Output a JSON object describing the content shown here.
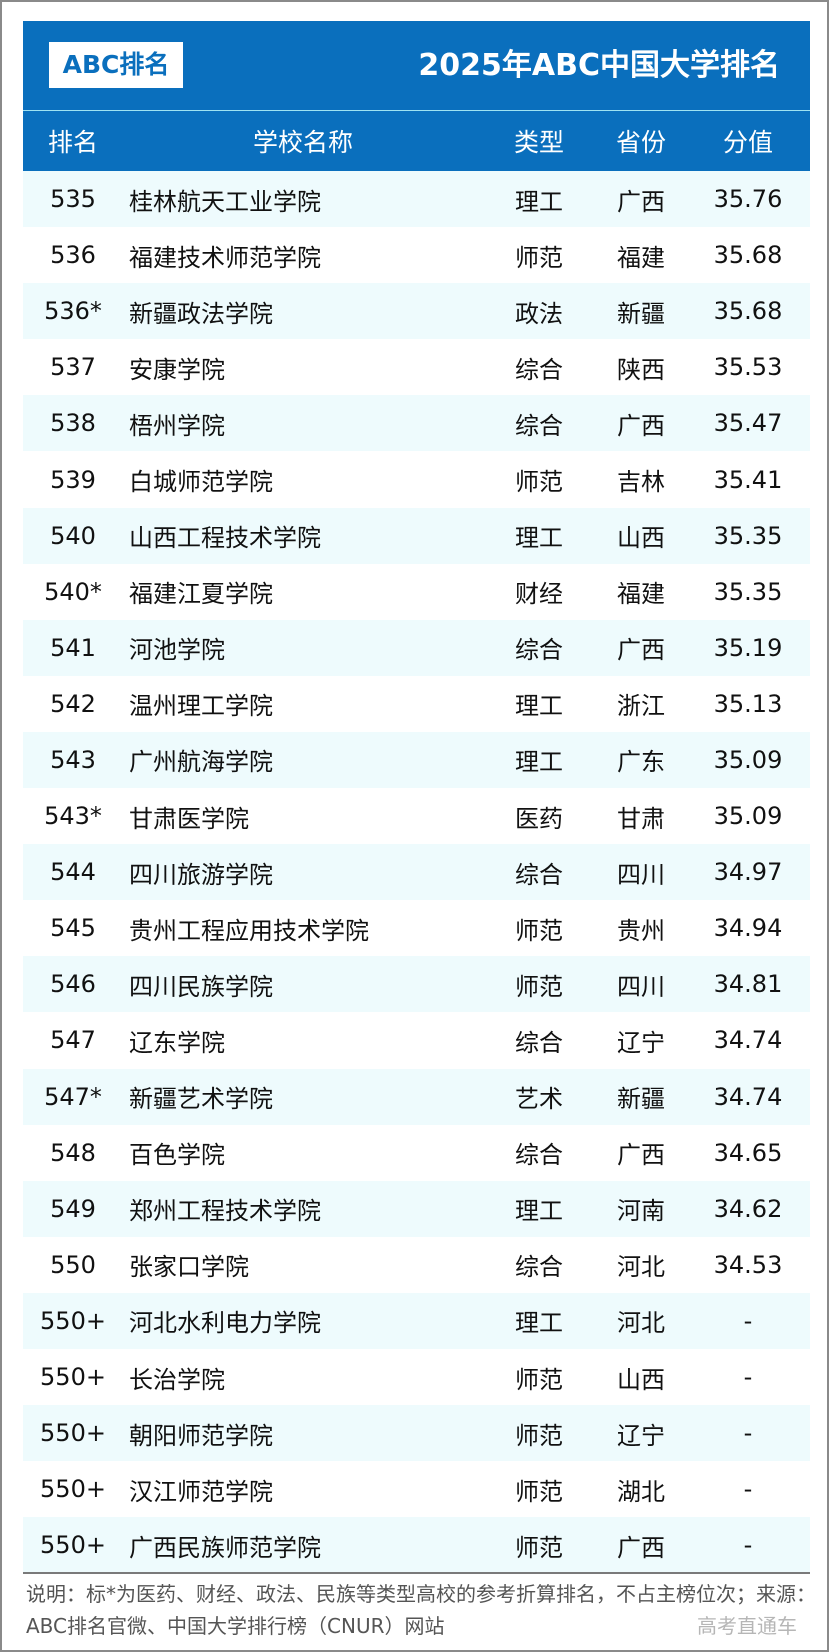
{
  "header": {
    "logo": "ABC排名",
    "title": "2025年ABC中国大学排名"
  },
  "columns": [
    "排名",
    "学校名称",
    "类型",
    "省份",
    "分值"
  ],
  "rows": [
    [
      "535",
      "桂林航天工业学院",
      "理工",
      "广西",
      "35.76"
    ],
    [
      "536",
      "福建技术师范学院",
      "师范",
      "福建",
      "35.68"
    ],
    [
      "536*",
      "新疆政法学院",
      "政法",
      "新疆",
      "35.68"
    ],
    [
      "537",
      "安康学院",
      "综合",
      "陕西",
      "35.53"
    ],
    [
      "538",
      "梧州学院",
      "综合",
      "广西",
      "35.47"
    ],
    [
      "539",
      "白城师范学院",
      "师范",
      "吉林",
      "35.41"
    ],
    [
      "540",
      "山西工程技术学院",
      "理工",
      "山西",
      "35.35"
    ],
    [
      "540*",
      "福建江夏学院",
      "财经",
      "福建",
      "35.35"
    ],
    [
      "541",
      "河池学院",
      "综合",
      "广西",
      "35.19"
    ],
    [
      "542",
      "温州理工学院",
      "理工",
      "浙江",
      "35.13"
    ],
    [
      "543",
      "广州航海学院",
      "理工",
      "广东",
      "35.09"
    ],
    [
      "543*",
      "甘肃医学院",
      "医药",
      "甘肃",
      "35.09"
    ],
    [
      "544",
      "四川旅游学院",
      "综合",
      "四川",
      "34.97"
    ],
    [
      "545",
      "贵州工程应用技术学院",
      "师范",
      "贵州",
      "34.94"
    ],
    [
      "546",
      "四川民族学院",
      "师范",
      "四川",
      "34.81"
    ],
    [
      "547",
      "辽东学院",
      "综合",
      "辽宁",
      "34.74"
    ],
    [
      "547*",
      "新疆艺术学院",
      "艺术",
      "新疆",
      "34.74"
    ],
    [
      "548",
      "百色学院",
      "综合",
      "广西",
      "34.65"
    ],
    [
      "549",
      "郑州工程技术学院",
      "理工",
      "河南",
      "34.62"
    ],
    [
      "550",
      "张家口学院",
      "综合",
      "河北",
      "34.53"
    ],
    [
      "550+",
      "河北水利电力学院",
      "理工",
      "河北",
      "-"
    ],
    [
      "550+",
      "长治学院",
      "师范",
      "山西",
      "-"
    ],
    [
      "550+",
      "朝阳师范学院",
      "师范",
      "辽宁",
      "-"
    ],
    [
      "550+",
      "汉江师范学院",
      "师范",
      "湖北",
      "-"
    ],
    [
      "550+",
      "广西民族师范学院",
      "师范",
      "广西",
      "-"
    ]
  ],
  "footer": {
    "note": "说明：标*为医药、财经、政法、民族等类型高校的参考折算排名，不占主榜位次；来源：ABC排名官微、中国大学排行榜（CNUR）网站",
    "watermark": "高考直通车"
  },
  "colors": {
    "header_blue": "#0a6fbd",
    "row_shade": "#eefbfd"
  }
}
